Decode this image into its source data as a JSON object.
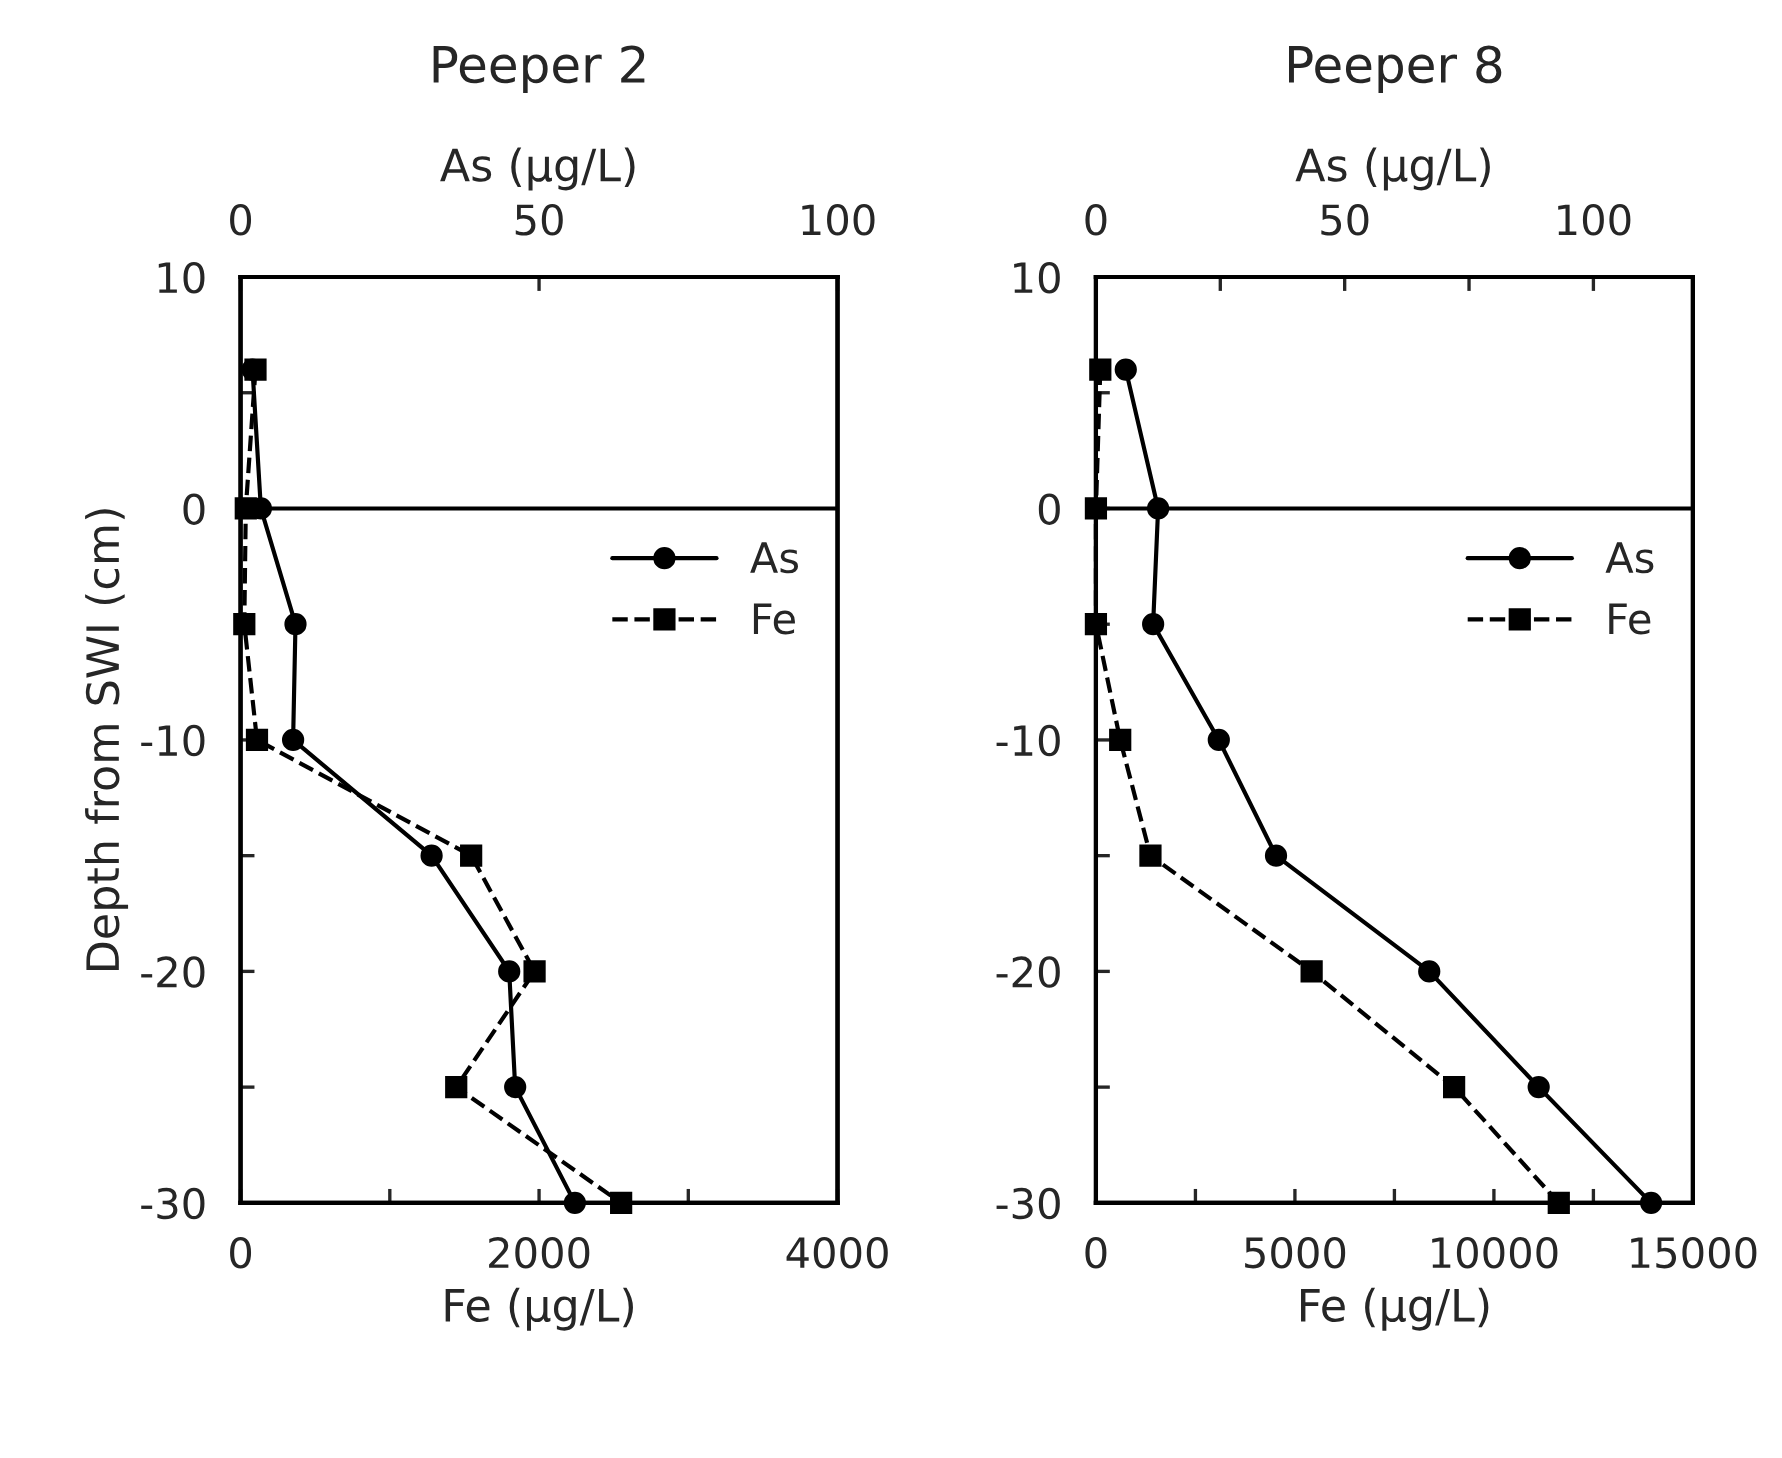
{
  "chart_data": [
    {
      "type": "line",
      "title": "Peeper 2",
      "xlabel": "Fe (µg/L)",
      "x2label": "As (µg/L)",
      "ylabel": "Depth from SWI (cm)",
      "xlim": [
        0,
        4000
      ],
      "xticks": [
        0,
        {
          "value": 1000,
          "label": null
        },
        2000,
        {
          "value": 3000,
          "label": null
        },
        4000
      ],
      "x2lim": [
        0,
        100
      ],
      "x2ticks": [
        0,
        50,
        100
      ],
      "ylim": [
        -30,
        10
      ],
      "yticks": [
        -30,
        {
          "value": -25,
          "label": null
        },
        -20,
        {
          "value": -15,
          "label": null
        },
        -10,
        {
          "value": -5,
          "label": null
        },
        0,
        {
          "value": 5,
          "label": null
        },
        10
      ],
      "grid": false,
      "legend": "right",
      "ref_lines": [
        {
          "axis": "y",
          "value": 0,
          "color": "#000000",
          "line_style": "solid"
        }
      ],
      "series": [
        {
          "name": "As",
          "axis": "x2",
          "color": "#000000",
          "marker": "circle",
          "line_style": "solid",
          "x": [
            2,
            3.4,
            9.2,
            8.8,
            32,
            45,
            46,
            56
          ],
          "values": [
            6,
            0,
            -5,
            -10,
            -15,
            -20,
            -25,
            -30
          ]
        },
        {
          "name": "Fe",
          "color": "#000000",
          "marker": "square",
          "line_style": "dashed",
          "x": [
            100,
            35,
            25,
            110,
            1545,
            1970,
            1445,
            2550
          ],
          "values": [
            6,
            0,
            -5,
            -10,
            -15,
            -20,
            -25,
            -30
          ]
        }
      ]
    },
    {
      "type": "line",
      "title": "Peeper 8",
      "xlabel": "Fe (µg/L)",
      "x2label": "As (µg/L)",
      "xlim": [
        0,
        15000
      ],
      "xticks": [
        0,
        {
          "value": 2500,
          "label": null
        },
        5000,
        {
          "value": 7500,
          "label": null
        },
        10000,
        {
          "value": 12500,
          "label": null
        },
        15000
      ],
      "x2lim": [
        0,
        120
      ],
      "x2ticks": [
        0,
        {
          "value": 25,
          "label": null
        },
        50,
        {
          "value": 75,
          "label": null
        },
        100
      ],
      "ylim": [
        -30,
        10
      ],
      "yticks": [
        -30,
        {
          "value": -25,
          "label": null
        },
        -20,
        {
          "value": -15,
          "label": null
        },
        -10,
        {
          "value": -5,
          "label": null
        },
        0,
        {
          "value": 5,
          "label": null
        },
        10
      ],
      "grid": false,
      "legend": "right",
      "ref_lines": [
        {
          "axis": "y",
          "value": 0,
          "color": "#000000",
          "line_style": "solid"
        }
      ],
      "series": [
        {
          "name": "As",
          "axis": "x2",
          "color": "#000000",
          "marker": "circle",
          "line_style": "solid",
          "x": [
            6.0,
            12.5,
            11.5,
            24.7,
            36.2,
            67,
            89,
            111.6
          ],
          "values": [
            6,
            0,
            -5,
            -10,
            -15,
            -20,
            -25,
            -30
          ]
        },
        {
          "name": "Fe",
          "color": "#000000",
          "marker": "square",
          "line_style": "dashed",
          "x": [
            110,
            0,
            0,
            610,
            1370,
            5420,
            9000,
            11630
          ],
          "values": [
            6,
            0,
            -5,
            -10,
            -15,
            -20,
            -25,
            -30
          ]
        }
      ]
    }
  ]
}
